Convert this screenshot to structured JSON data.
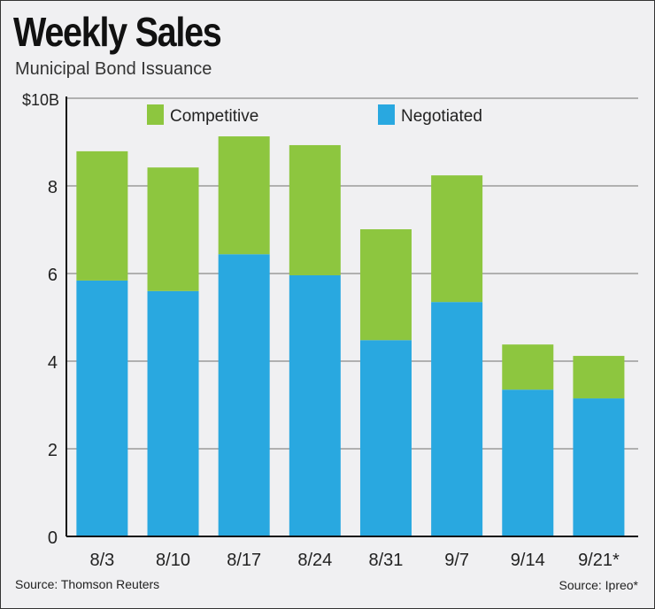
{
  "title": "Weekly Sales",
  "subtitle": "Municipal Bond Issuance",
  "source_left": "Source: Thomson Reuters",
  "source_right": "Source: Ipreo*",
  "colors": {
    "competitive": "#8dc63f",
    "negotiated": "#29a8e0",
    "grid": "#9a9a9a"
  },
  "chart_data": {
    "type": "bar",
    "stacked": true,
    "categories": [
      "8/3",
      "8/10",
      "8/17",
      "8/24",
      "8/31",
      "9/7",
      "9/14",
      "9/21*"
    ],
    "series": [
      {
        "name": "Negotiated",
        "values": [
          5.84,
          5.6,
          6.44,
          5.96,
          4.48,
          5.35,
          3.35,
          3.15
        ]
      },
      {
        "name": "Competitive",
        "values": [
          2.95,
          2.82,
          2.69,
          2.97,
          2.53,
          2.89,
          1.03,
          0.97
        ]
      }
    ],
    "yticks": [
      "0",
      "2",
      "4",
      "6",
      "8",
      "$10B"
    ],
    "ylim": [
      0,
      10
    ],
    "grid": true,
    "legend": "top"
  }
}
